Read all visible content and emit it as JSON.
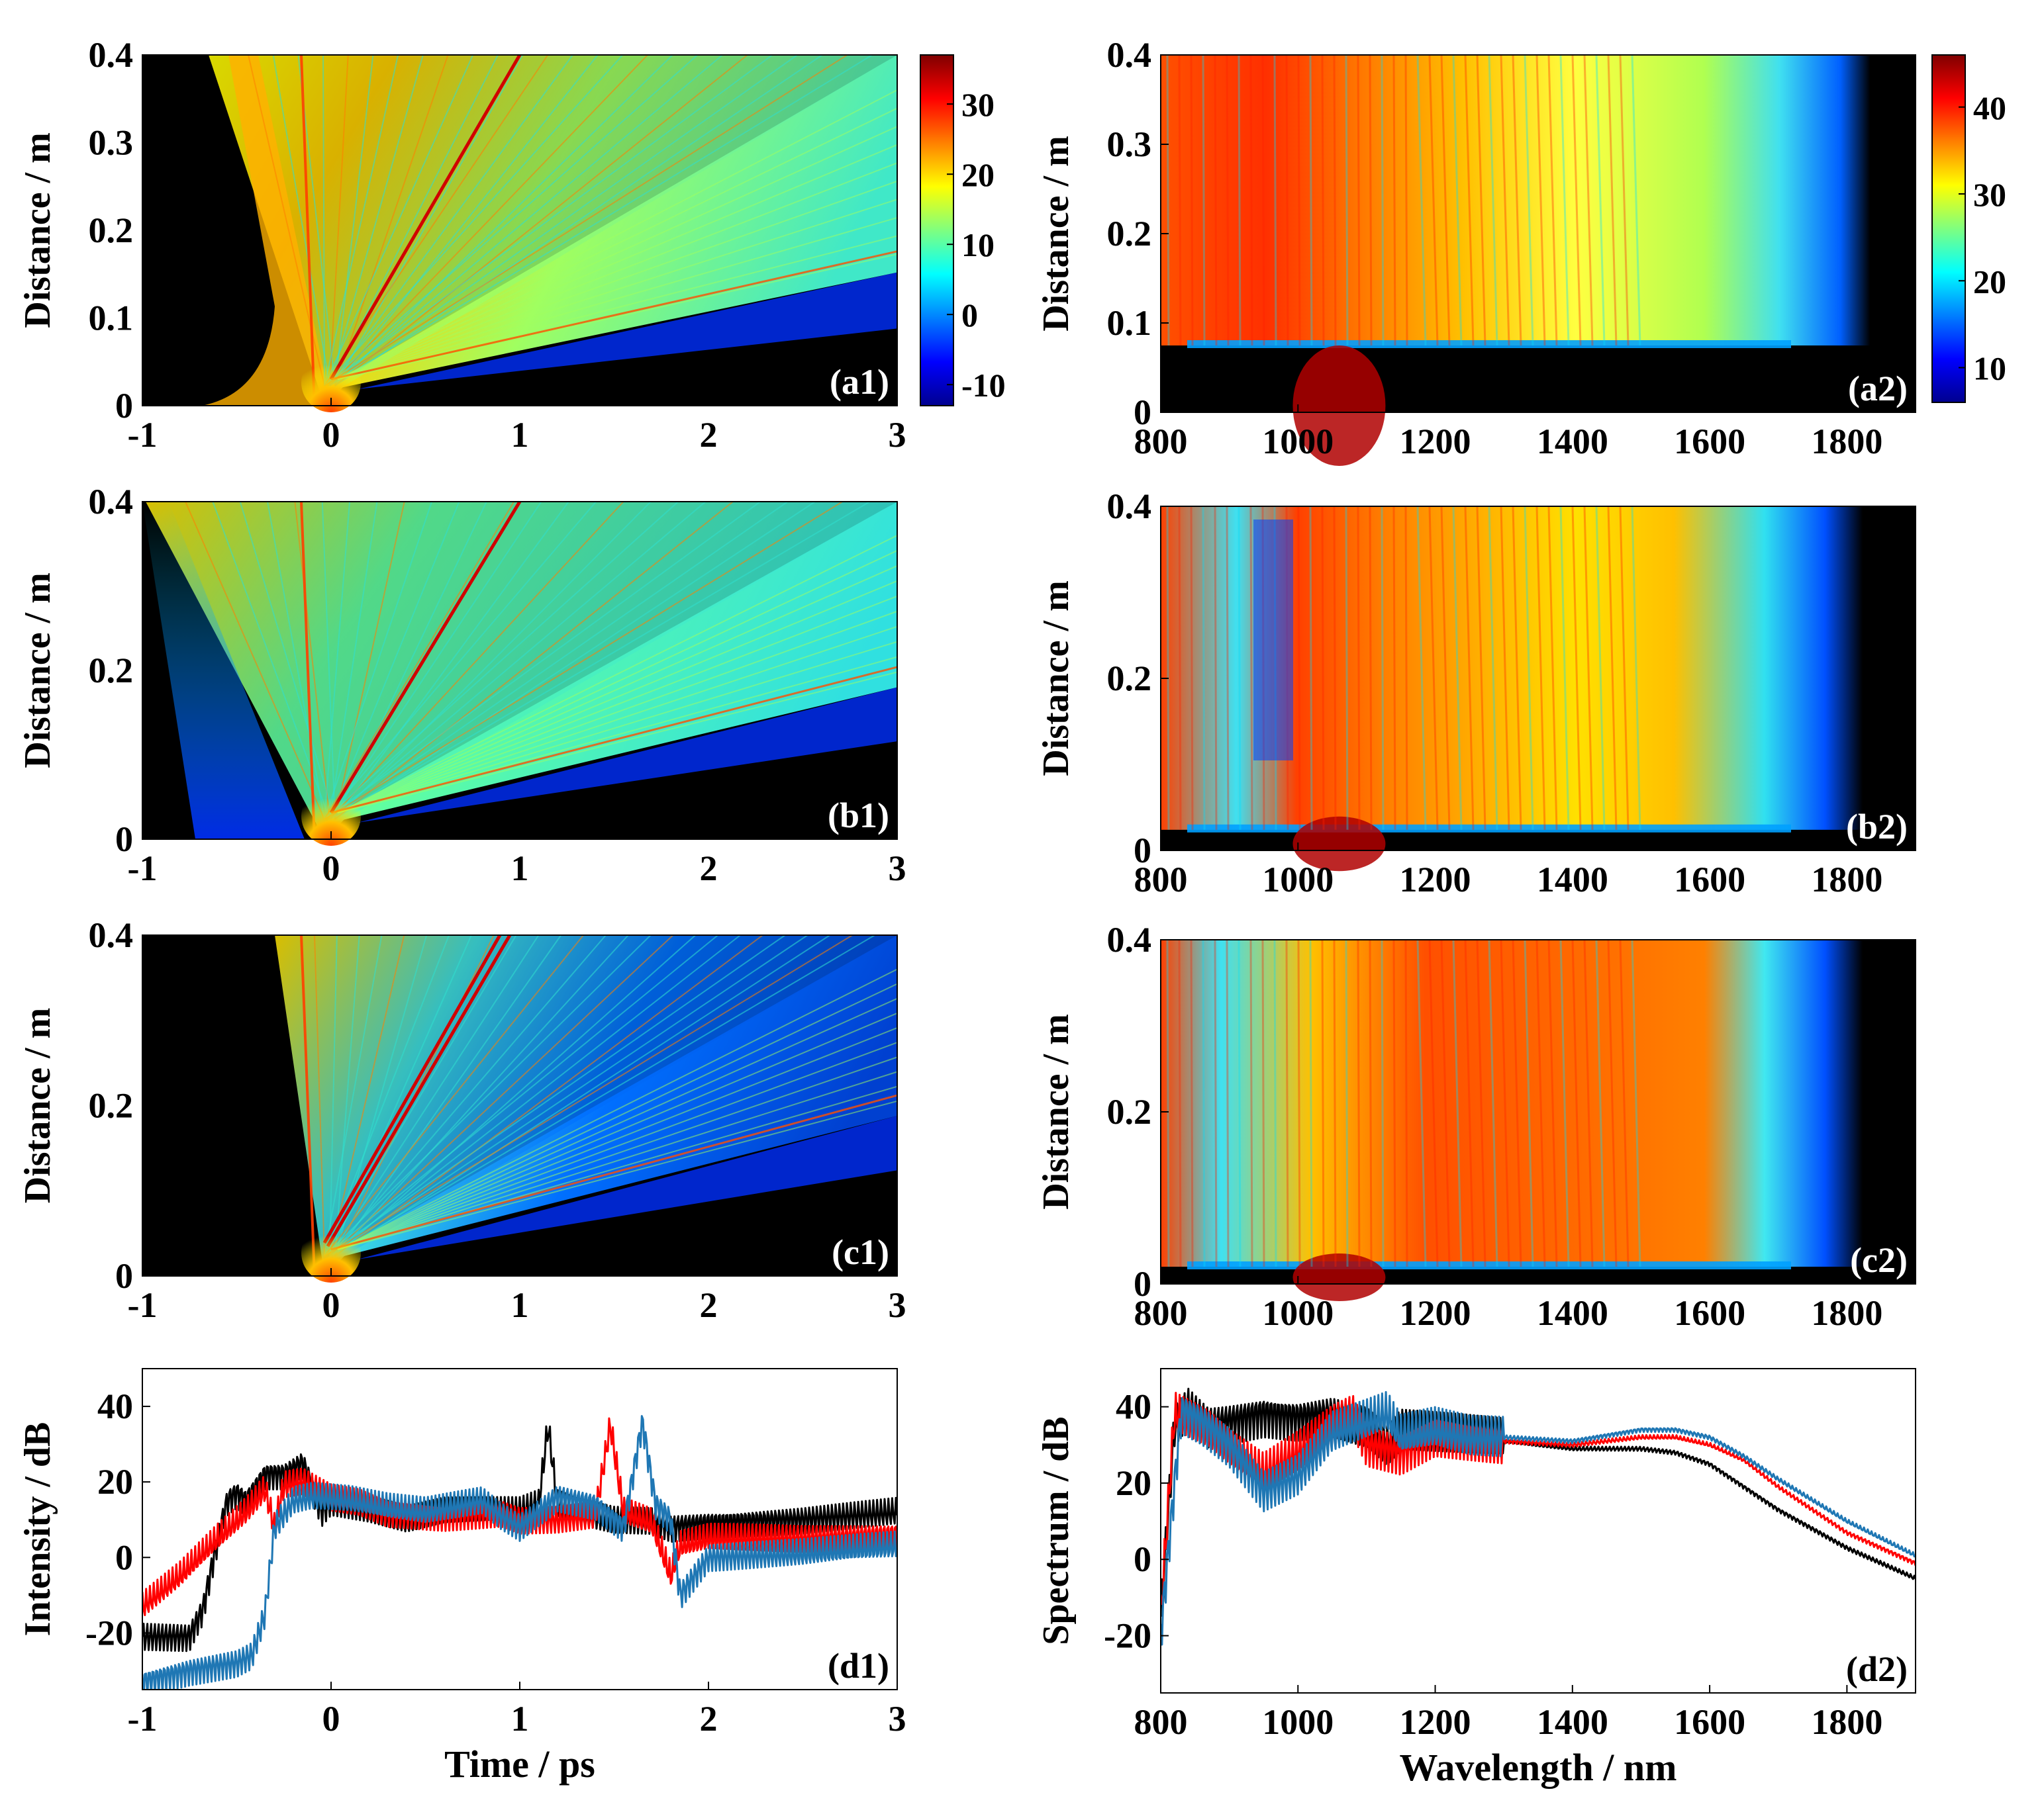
{
  "figure": {
    "labels": {
      "time_axis": "Time / ps",
      "wavelength_axis": "Wavelength / nm",
      "distance_axis": "Distance / m",
      "intensity_axis": "Intensity / dB",
      "spectrum_axis": "Spectrum / dB"
    },
    "colormap": [
      "#00008f",
      "#0000ff",
      "#007fff",
      "#00ffff",
      "#7fff7f",
      "#ffff00",
      "#ff7f00",
      "#ff0000",
      "#7f0000"
    ],
    "line_colors": {
      "black": "#000000",
      "red": "#ff0000",
      "blue": "#1f77b4"
    }
  },
  "chart_data": [
    {
      "id": "a1",
      "type": "heatmap",
      "panel_label": "(a1)",
      "xlim": [
        -1,
        3
      ],
      "xticks": [
        "-1",
        "0",
        "1",
        "2",
        "3"
      ],
      "ylim": [
        0,
        0.4
      ],
      "yticks": [
        "0",
        "0.1",
        "0.2",
        "0.3",
        "0.4"
      ],
      "ylabel": "Distance / m",
      "xlabel": "",
      "colorbar": {
        "range": [
          -13,
          37
        ],
        "ticks": [
          "30",
          "20",
          "10",
          "0",
          "-10"
        ]
      }
    },
    {
      "id": "a2",
      "type": "heatmap",
      "panel_label": "(a2)",
      "xlim": [
        800,
        1900
      ],
      "xticks": [
        "800",
        "1000",
        "1200",
        "1400",
        "1600",
        "1800"
      ],
      "ylim": [
        0,
        0.4
      ],
      "yticks": [
        "0",
        "0.1",
        "0.2",
        "0.3",
        "0.4"
      ],
      "ylabel": "Distance / m",
      "xlabel": "",
      "colorbar": {
        "range": [
          6,
          46
        ],
        "ticks": [
          "40",
          "30",
          "20",
          "10"
        ]
      }
    },
    {
      "id": "b1",
      "type": "heatmap",
      "panel_label": "(b1)",
      "xlim": [
        -1,
        3
      ],
      "xticks": [
        "-1",
        "0",
        "1",
        "2",
        "3"
      ],
      "ylim": [
        0,
        0.4
      ],
      "yticks": [
        "0",
        "0.2",
        "0.4"
      ],
      "ylabel": "Distance / m",
      "xlabel": ""
    },
    {
      "id": "b2",
      "type": "heatmap",
      "panel_label": "(b2)",
      "xlim": [
        800,
        1900
      ],
      "xticks": [
        "800",
        "1000",
        "1200",
        "1400",
        "1600",
        "1800"
      ],
      "ylim": [
        0,
        0.4
      ],
      "yticks": [
        "0",
        "0.2",
        "0.4"
      ],
      "ylabel": "Distance / m",
      "xlabel": ""
    },
    {
      "id": "c1",
      "type": "heatmap",
      "panel_label": "(c1)",
      "xlim": [
        -1,
        3
      ],
      "xticks": [
        "-1",
        "0",
        "1",
        "2",
        "3"
      ],
      "ylim": [
        0,
        0.4
      ],
      "yticks": [
        "0",
        "0.2",
        "0.4"
      ],
      "ylabel": "Distance / m",
      "xlabel": ""
    },
    {
      "id": "c2",
      "type": "heatmap",
      "panel_label": "(c2)",
      "xlim": [
        800,
        1900
      ],
      "xticks": [
        "800",
        "1000",
        "1200",
        "1400",
        "1600",
        "1800"
      ],
      "ylim": [
        0,
        0.4
      ],
      "yticks": [
        "0",
        "0.2",
        "0.4"
      ],
      "ylabel": "Distance / m",
      "xlabel": ""
    },
    {
      "id": "d1",
      "type": "line",
      "panel_label": "(d1)",
      "xlim": [
        -1,
        3
      ],
      "xticks": [
        "-1",
        "0",
        "1",
        "2",
        "3"
      ],
      "ylim": [
        -35,
        50
      ],
      "yticks": [
        "-20",
        "0",
        "20",
        "40"
      ],
      "xlabel": "Time / ps",
      "ylabel": "Intensity / dB",
      "series": [
        {
          "name": "black",
          "color": "#000000",
          "x": [
            -1,
            -0.75,
            -0.68,
            -0.6,
            -0.55,
            -0.5,
            -0.45,
            -0.35,
            -0.25,
            -0.15,
            -0.05,
            0.0,
            0.2,
            0.4,
            0.6,
            0.8,
            1.0,
            1.1,
            1.15,
            1.2,
            1.3,
            1.5,
            1.7,
            1.8,
            2.0,
            2.5,
            3.0
          ],
          "values": [
            -21,
            -21,
            -14,
            5,
            15,
            17,
            15,
            22,
            22,
            25,
            12,
            15,
            13,
            10,
            12,
            12,
            12,
            14,
            35,
            14,
            12,
            10,
            10,
            8,
            9,
            10,
            12
          ]
        },
        {
          "name": "red",
          "color": "#ff0000",
          "x": [
            -1,
            -0.8,
            -0.6,
            -0.45,
            -0.35,
            -0.3,
            -0.25,
            -0.15,
            0.0,
            0.15,
            0.3,
            0.6,
            0.9,
            1.0,
            1.2,
            1.4,
            1.48,
            1.55,
            1.7,
            1.8,
            1.85,
            2.0,
            2.5,
            3.0
          ],
          "values": [
            -13,
            -5,
            5,
            12,
            18,
            8,
            19,
            20,
            16,
            15,
            12,
            11,
            12,
            10,
            10,
            11,
            35,
            12,
            9,
            -5,
            3,
            5,
            5,
            6
          ]
        },
        {
          "name": "blue",
          "color": "#1f77b4",
          "x": [
            -1,
            -0.75,
            -0.5,
            -0.42,
            -0.35,
            -0.3,
            -0.2,
            -0.1,
            0.1,
            0.3,
            0.5,
            0.7,
            0.8,
            0.9,
            1.0,
            1.2,
            1.4,
            1.55,
            1.65,
            1.72,
            1.8,
            1.85,
            2.0,
            2.5,
            3.0
          ],
          "values": [
            -33,
            -30,
            -28,
            -26,
            -15,
            8,
            15,
            16,
            15,
            13,
            12,
            14,
            15,
            11,
            8,
            16,
            14,
            8,
            36,
            14,
            10,
            -10,
            0,
            1,
            3
          ]
        }
      ]
    },
    {
      "id": "d2",
      "type": "line",
      "panel_label": "(d2)",
      "xlim": [
        800,
        1900
      ],
      "xticks": [
        "800",
        "1000",
        "1200",
        "1400",
        "1600",
        "1800"
      ],
      "ylim": [
        -35,
        50
      ],
      "yticks": [
        "-20",
        "0",
        "20",
        "40"
      ],
      "xlabel": "Wavelength / nm",
      "ylabel": "Spectrum / dB",
      "series": [
        {
          "name": "black",
          "color": "#000000",
          "x": [
            800,
            820,
            840,
            870,
            900,
            950,
            1000,
            1050,
            1100,
            1130,
            1150,
            1200,
            1250,
            1300,
            1400,
            1500,
            1550,
            1600,
            1650,
            1700,
            1800,
            1900
          ],
          "values": [
            -15,
            35,
            40,
            35,
            36,
            38,
            37,
            38,
            35,
            30,
            34,
            33,
            32,
            31,
            29,
            29,
            28,
            25,
            19,
            13,
            3,
            -5
          ]
        },
        {
          "name": "red",
          "color": "#ff0000",
          "x": [
            800,
            820,
            840,
            870,
            900,
            950,
            1000,
            1050,
            1080,
            1100,
            1150,
            1200,
            1250,
            1300,
            1400,
            1500,
            1550,
            1600,
            1650,
            1700,
            1800,
            1900
          ],
          "values": [
            -15,
            38,
            36,
            33,
            28,
            22,
            28,
            35,
            38,
            30,
            28,
            33,
            32,
            31,
            30,
            32,
            32,
            30,
            26,
            19,
            7,
            -1
          ]
        },
        {
          "name": "blue",
          "color": "#1f77b4",
          "x": [
            800,
            810,
            830,
            860,
            900,
            950,
            1000,
            1050,
            1100,
            1130,
            1150,
            1200,
            1250,
            1300,
            1400,
            1500,
            1550,
            1600,
            1650,
            1700,
            1800,
            1900
          ],
          "values": [
            -20,
            0,
            39,
            36,
            30,
            18,
            22,
            33,
            36,
            38,
            32,
            34,
            32,
            32,
            31,
            34,
            34,
            32,
            27,
            21,
            10,
            1
          ]
        }
      ]
    }
  ]
}
